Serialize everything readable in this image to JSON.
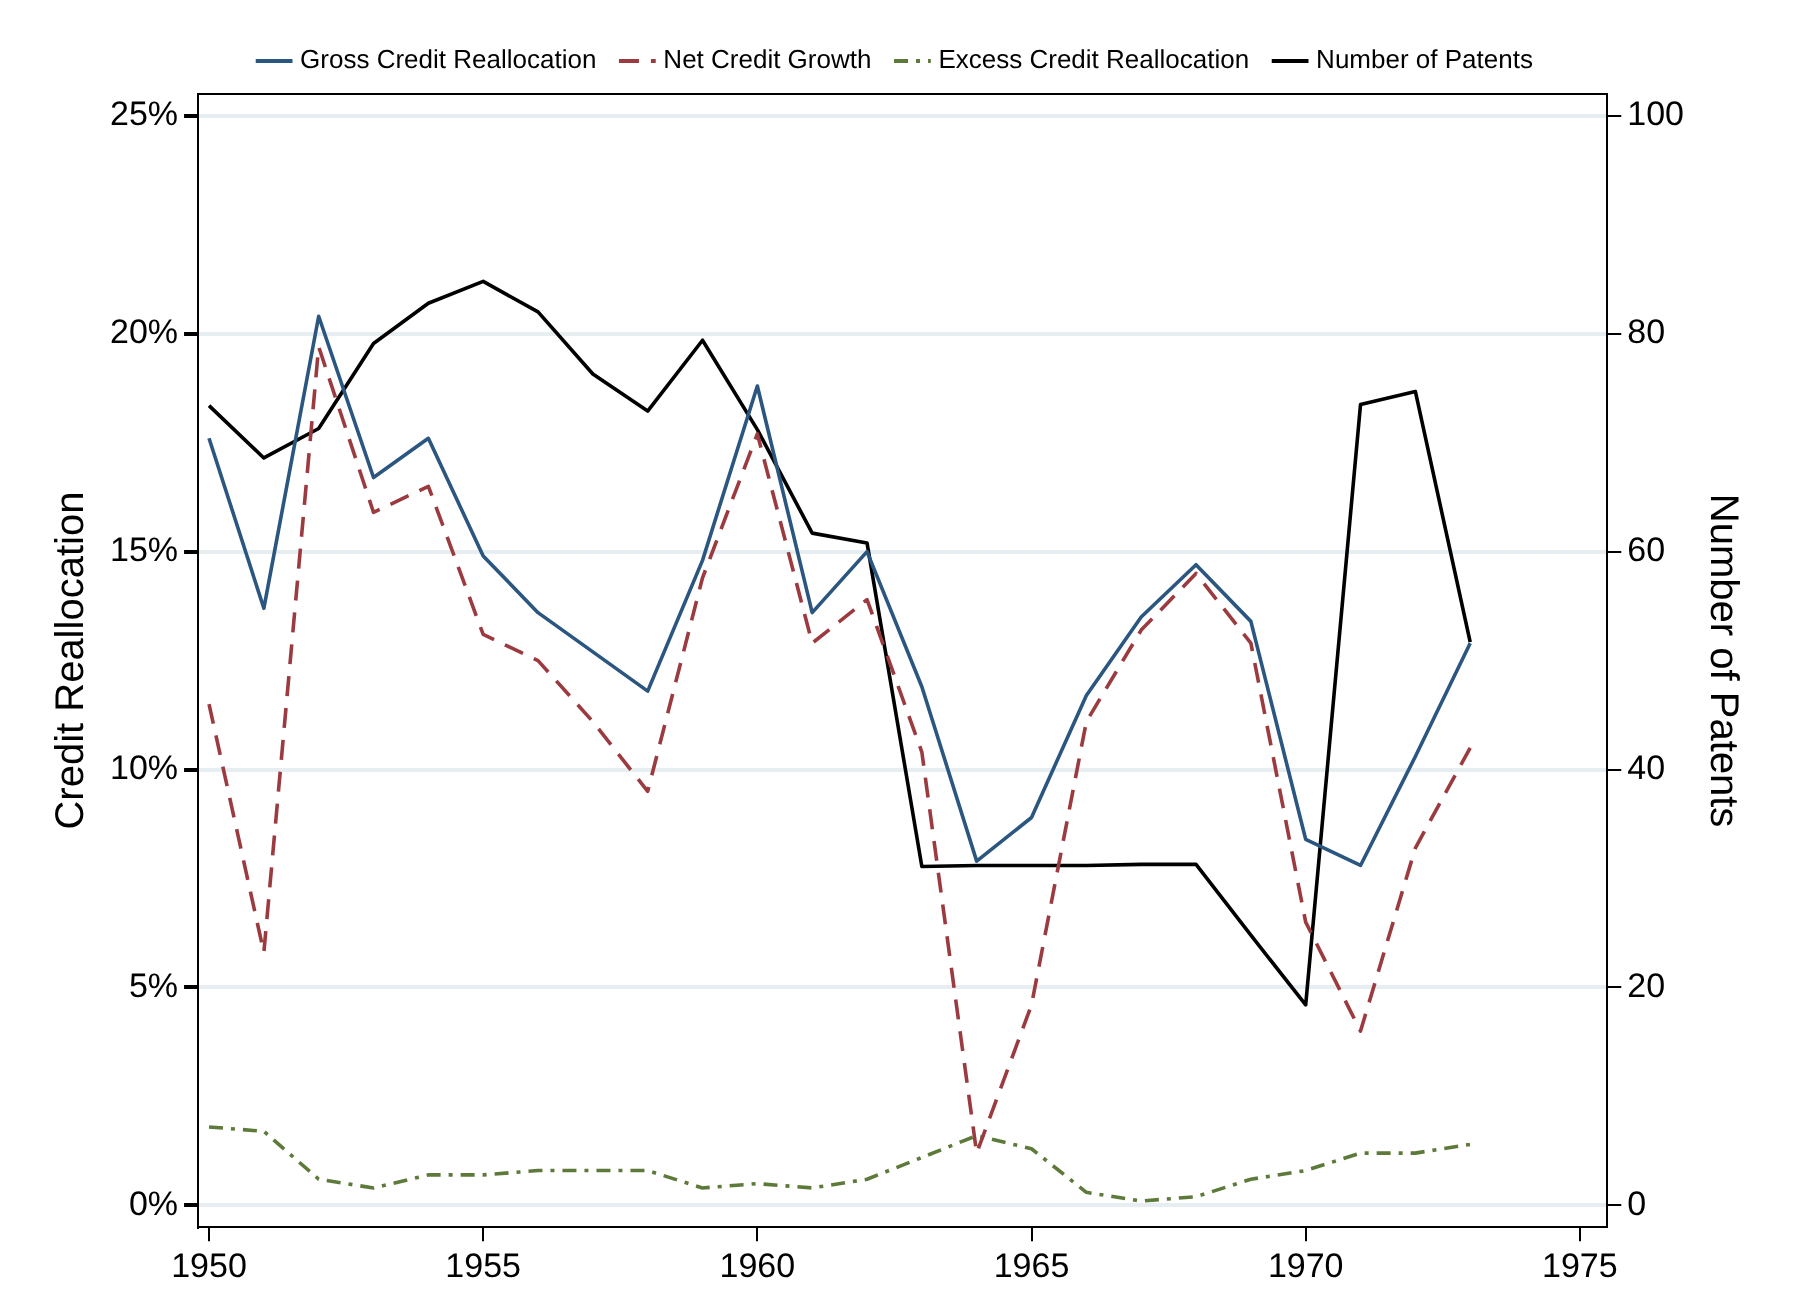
{
  "chart_data": {
    "type": "line",
    "xlabel": null,
    "ylabel": "Credit Reallocation",
    "y2label": "Number of Patents",
    "x": [
      1950,
      1951,
      1952,
      1953,
      1954,
      1955,
      1956,
      1957,
      1958,
      1959,
      1960,
      1961,
      1962,
      1963,
      1964,
      1965,
      1966,
      1967,
      1968,
      1969,
      1970,
      1971,
      1972,
      1973
    ],
    "xlim": [
      1949.8,
      1975.5
    ],
    "xticks": [
      1950,
      1955,
      1960,
      1965,
      1970,
      1975
    ],
    "ylim": [
      -0.5,
      25.5
    ],
    "yticks": [
      {
        "value": 0,
        "label": "0%"
      },
      {
        "value": 5,
        "label": "5%"
      },
      {
        "value": 10,
        "label": "10%"
      },
      {
        "value": 15,
        "label": "15%"
      },
      {
        "value": 20,
        "label": "20%"
      },
      {
        "value": 25,
        "label": "25%"
      }
    ],
    "y2lim": [
      -2,
      102
    ],
    "y2ticks": [
      0,
      20,
      40,
      60,
      80,
      100
    ],
    "grid": "y",
    "legend": "top",
    "marker": "none",
    "series": [
      {
        "name": "Gross Credit Reallocation",
        "color": "#2b5680",
        "line_style": "solid",
        "values": [
          17.6,
          13.7,
          20.4,
          16.7,
          17.6,
          14.9,
          13.6,
          12.7,
          11.8,
          14.8,
          18.8,
          13.6,
          15.0,
          11.9,
          7.9,
          8.9,
          11.7,
          13.5,
          14.7,
          13.4,
          8.4,
          7.8,
          10.3,
          12.9
        ]
      },
      {
        "name": "Net Credit Growth",
        "color": "#9b3b40",
        "line_style": "dashed",
        "values": [
          11.5,
          5.8,
          19.7,
          15.9,
          16.5,
          13.1,
          12.5,
          11.1,
          9.5,
          14.4,
          17.7,
          12.9,
          13.9,
          10.4,
          1.2,
          4.6,
          11.1,
          13.2,
          14.5,
          12.9,
          6.5,
          4.0,
          8.2,
          10.5
        ]
      },
      {
        "name": "Excess Credit Reallocation",
        "color": "#5d7a3a",
        "line_style": "dotted",
        "values": [
          1.8,
          1.7,
          0.6,
          0.4,
          0.7,
          0.7,
          0.8,
          0.8,
          0.8,
          0.4,
          0.5,
          0.4,
          0.6,
          1.1,
          1.6,
          1.3,
          0.3,
          0.1,
          0.2,
          0.6,
          0.8,
          1.2,
          1.2,
          1.4
        ]
      },
      {
        "name": "Number of Patents",
        "color": "#000000",
        "line_style": "solid",
        "axis": "y2",
        "values": [
          73.4,
          68.6,
          71.3,
          79.1,
          82.8,
          84.8,
          82.0,
          76.3,
          72.9,
          79.4,
          71.2,
          61.7,
          60.8,
          31.1,
          31.2,
          31.2,
          31.2,
          31.3,
          31.3,
          24.8,
          18.4,
          73.5,
          74.7,
          51.7
        ]
      }
    ]
  }
}
